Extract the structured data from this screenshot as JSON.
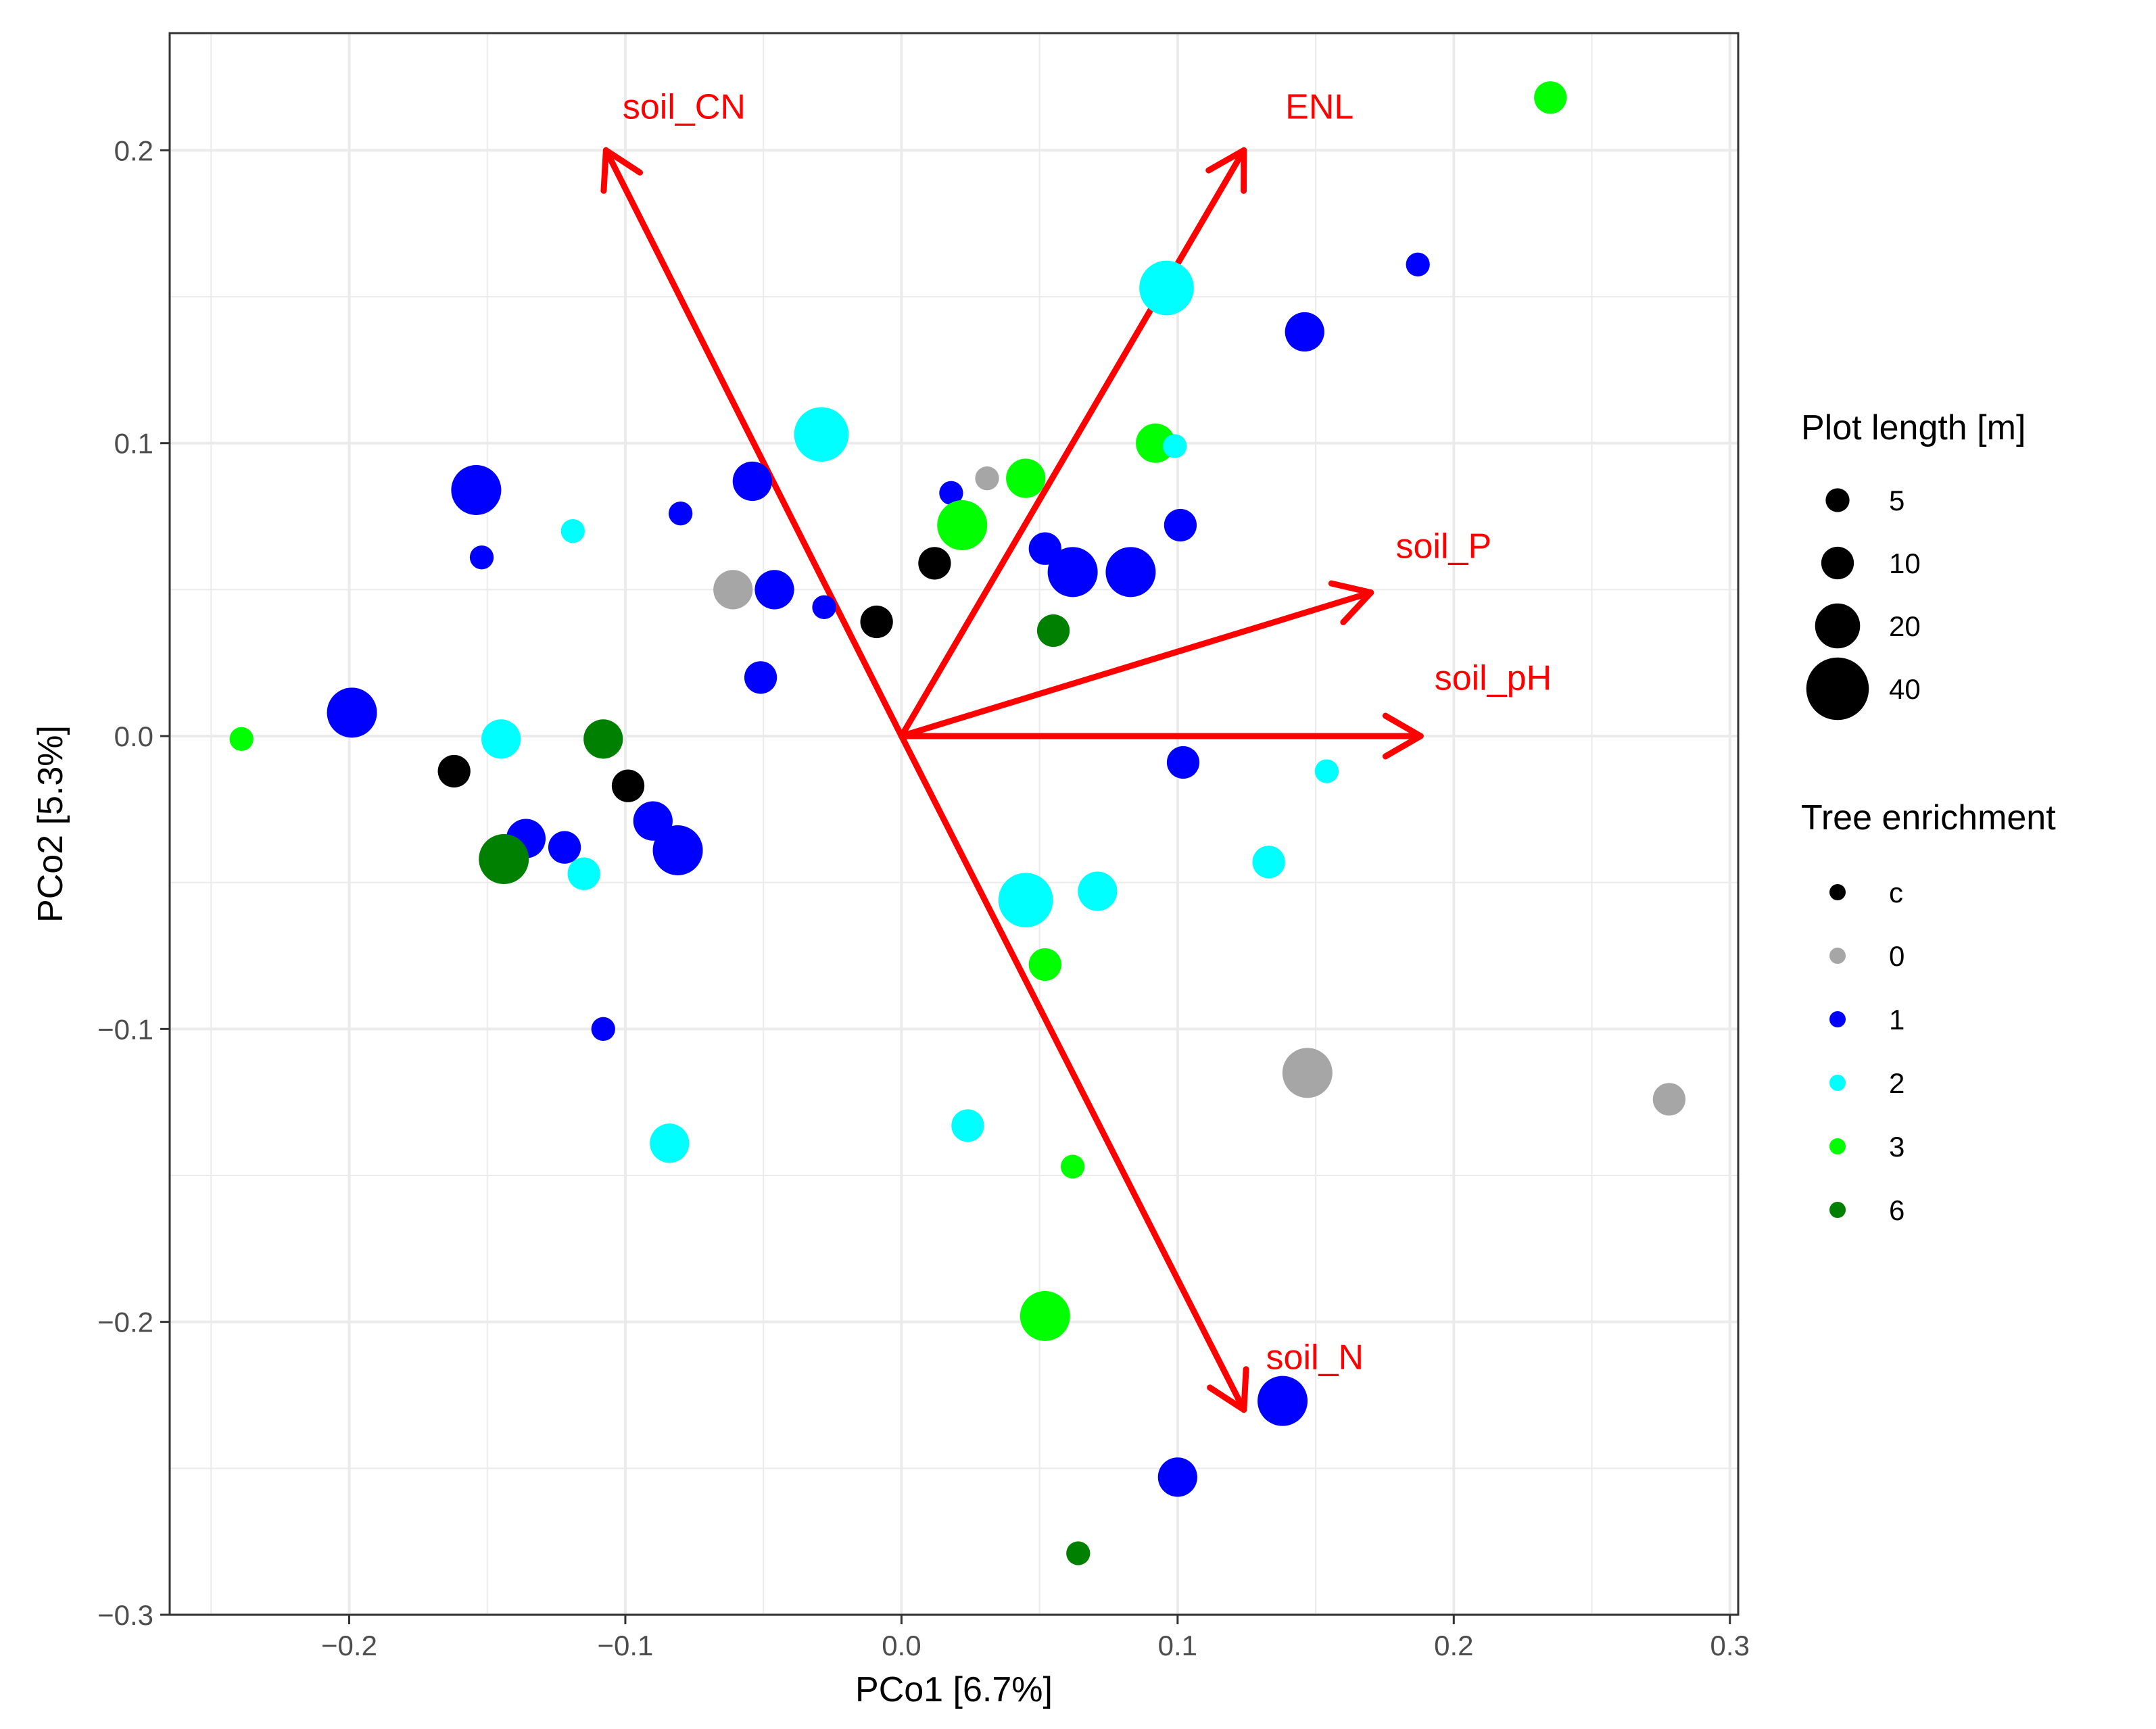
{
  "chart_data": {
    "type": "scatter",
    "xlabel": "PCo1 [6.7%]",
    "ylabel": "PCo2 [5.3%]",
    "xlim": [
      -0.265,
      0.303
    ],
    "ylim": [
      -0.3,
      0.24
    ],
    "x_ticks": [
      {
        "value": -0.2,
        "label": "−0.2"
      },
      {
        "value": -0.1,
        "label": "−0.1"
      },
      {
        "value": 0.0,
        "label": "0.0"
      },
      {
        "value": 0.1,
        "label": "0.1"
      },
      {
        "value": 0.2,
        "label": "0.2"
      },
      {
        "value": 0.3,
        "label": "0.3"
      }
    ],
    "y_ticks": [
      {
        "value": -0.3,
        "label": "−0.3"
      },
      {
        "value": -0.2,
        "label": "−0.2"
      },
      {
        "value": -0.1,
        "label": "−0.1"
      },
      {
        "value": 0.0,
        "label": "0.0"
      },
      {
        "value": 0.1,
        "label": "0.1"
      },
      {
        "value": 0.2,
        "label": "0.2"
      }
    ],
    "grid": true,
    "size_legend": {
      "title": "Plot length [m]",
      "entries": [
        {
          "label": "5",
          "size": 5
        },
        {
          "label": "10",
          "size": 10
        },
        {
          "label": "20",
          "size": 20
        },
        {
          "label": "40",
          "size": 40
        }
      ]
    },
    "color_legend": {
      "title": "Tree enrichment",
      "entries": [
        {
          "label": "c",
          "color": "#000000"
        },
        {
          "label": "0",
          "color": "#a6a6a6"
        },
        {
          "label": "1",
          "color": "#0000ff"
        },
        {
          "label": "2",
          "color": "#00ffff"
        },
        {
          "label": "3",
          "color": "#00ff00"
        },
        {
          "label": "6",
          "color": "#008000"
        }
      ]
    },
    "vectors": [
      {
        "label": "soil_CN",
        "x": -0.107,
        "y": 0.2,
        "label_x": -0.101,
        "label_y": 0.215,
        "anchor": "start"
      },
      {
        "label": "ENL",
        "x": 0.124,
        "y": 0.2,
        "label_x": 0.139,
        "label_y": 0.215,
        "anchor": "start"
      },
      {
        "label": "soil_P",
        "x": 0.17,
        "y": 0.049,
        "label_x": 0.179,
        "label_y": 0.065,
        "anchor": "start"
      },
      {
        "label": "soil_pH",
        "x": 0.188,
        "y": 0.0,
        "label_x": 0.193,
        "label_y": 0.02,
        "anchor": "start"
      },
      {
        "label": "soil_N",
        "x": 0.124,
        "y": -0.23,
        "label_x": 0.132,
        "label_y": -0.212,
        "anchor": "start"
      }
    ],
    "points": [
      {
        "x": 0.235,
        "y": 0.218,
        "enrichment": "3",
        "size": 10
      },
      {
        "x": 0.187,
        "y": 0.161,
        "enrichment": "1",
        "size": 5
      },
      {
        "x": 0.096,
        "y": 0.153,
        "enrichment": "2",
        "size": 30
      },
      {
        "x": 0.146,
        "y": 0.138,
        "enrichment": "1",
        "size": 15
      },
      {
        "x": 0.092,
        "y": 0.1,
        "enrichment": "3",
        "size": 15
      },
      {
        "x": 0.099,
        "y": 0.099,
        "enrichment": "2",
        "size": 5
      },
      {
        "x": 0.031,
        "y": 0.088,
        "enrichment": "0",
        "size": 5
      },
      {
        "x": 0.045,
        "y": 0.088,
        "enrichment": "3",
        "size": 15
      },
      {
        "x": 0.018,
        "y": 0.083,
        "enrichment": "1",
        "size": 5
      },
      {
        "x": 0.022,
        "y": 0.072,
        "enrichment": "3",
        "size": 25
      },
      {
        "x": 0.101,
        "y": 0.072,
        "enrichment": "1",
        "size": 10
      },
      {
        "x": 0.052,
        "y": 0.064,
        "enrichment": "1",
        "size": 10
      },
      {
        "x": 0.062,
        "y": 0.056,
        "enrichment": "1",
        "size": 25
      },
      {
        "x": 0.083,
        "y": 0.056,
        "enrichment": "1",
        "size": 25
      },
      {
        "x": 0.012,
        "y": 0.059,
        "enrichment": "c",
        "size": 10
      },
      {
        "x": 0.055,
        "y": 0.036,
        "enrichment": "6",
        "size": 10
      },
      {
        "x": -0.009,
        "y": 0.039,
        "enrichment": "c",
        "size": 10
      },
      {
        "x": -0.029,
        "y": 0.103,
        "enrichment": "2",
        "size": 30
      },
      {
        "x": -0.054,
        "y": 0.087,
        "enrichment": "1",
        "size": 15
      },
      {
        "x": -0.154,
        "y": 0.084,
        "enrichment": "1",
        "size": 25
      },
      {
        "x": -0.08,
        "y": 0.076,
        "enrichment": "1",
        "size": 5
      },
      {
        "x": -0.119,
        "y": 0.07,
        "enrichment": "2",
        "size": 5
      },
      {
        "x": -0.152,
        "y": 0.061,
        "enrichment": "1",
        "size": 5
      },
      {
        "x": -0.061,
        "y": 0.05,
        "enrichment": "0",
        "size": 15
      },
      {
        "x": -0.046,
        "y": 0.05,
        "enrichment": "1",
        "size": 15
      },
      {
        "x": -0.028,
        "y": 0.044,
        "enrichment": "1",
        "size": 5
      },
      {
        "x": -0.051,
        "y": 0.02,
        "enrichment": "1",
        "size": 10
      },
      {
        "x": -0.199,
        "y": 0.008,
        "enrichment": "1",
        "size": 25
      },
      {
        "x": -0.239,
        "y": -0.001,
        "enrichment": "3",
        "size": 5
      },
      {
        "x": -0.145,
        "y": -0.001,
        "enrichment": "2",
        "size": 15
      },
      {
        "x": -0.108,
        "y": -0.001,
        "enrichment": "6",
        "size": 15
      },
      {
        "x": -0.162,
        "y": -0.012,
        "enrichment": "c",
        "size": 10
      },
      {
        "x": -0.099,
        "y": -0.017,
        "enrichment": "c",
        "size": 10
      },
      {
        "x": 0.102,
        "y": -0.009,
        "enrichment": "1",
        "size": 10
      },
      {
        "x": 0.154,
        "y": -0.012,
        "enrichment": "2",
        "size": 5
      },
      {
        "x": -0.136,
        "y": -0.035,
        "enrichment": "1",
        "size": 15
      },
      {
        "x": -0.122,
        "y": -0.038,
        "enrichment": "1",
        "size": 10
      },
      {
        "x": -0.09,
        "y": -0.029,
        "enrichment": "1",
        "size": 15
      },
      {
        "x": -0.081,
        "y": -0.039,
        "enrichment": "1",
        "size": 25
      },
      {
        "x": -0.144,
        "y": -0.042,
        "enrichment": "6",
        "size": 25
      },
      {
        "x": -0.115,
        "y": -0.047,
        "enrichment": "2",
        "size": 10
      },
      {
        "x": 0.045,
        "y": -0.056,
        "enrichment": "2",
        "size": 30
      },
      {
        "x": 0.071,
        "y": -0.053,
        "enrichment": "2",
        "size": 15
      },
      {
        "x": 0.133,
        "y": -0.043,
        "enrichment": "2",
        "size": 10
      },
      {
        "x": 0.052,
        "y": -0.078,
        "enrichment": "3",
        "size": 10
      },
      {
        "x": -0.108,
        "y": -0.1,
        "enrichment": "1",
        "size": 5
      },
      {
        "x": 0.147,
        "y": -0.115,
        "enrichment": "0",
        "size": 25
      },
      {
        "x": 0.278,
        "y": -0.124,
        "enrichment": "0",
        "size": 10
      },
      {
        "x": -0.084,
        "y": -0.139,
        "enrichment": "2",
        "size": 15
      },
      {
        "x": 0.024,
        "y": -0.133,
        "enrichment": "2",
        "size": 10
      },
      {
        "x": 0.062,
        "y": -0.147,
        "enrichment": "3",
        "size": 5
      },
      {
        "x": 0.052,
        "y": -0.198,
        "enrichment": "3",
        "size": 25
      },
      {
        "x": 0.138,
        "y": -0.227,
        "enrichment": "1",
        "size": 25
      },
      {
        "x": 0.1,
        "y": -0.253,
        "enrichment": "1",
        "size": 15
      },
      {
        "x": 0.064,
        "y": -0.279,
        "enrichment": "6",
        "size": 5
      }
    ]
  }
}
